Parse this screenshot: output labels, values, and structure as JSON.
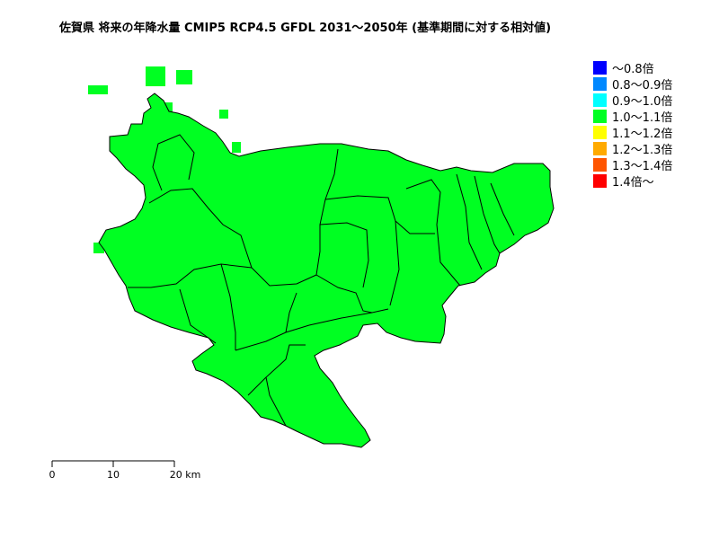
{
  "title": "佐賀県 将来の年降水量 CMIP5 RCP4.5 GFDL 2031～2050年 (基準期間に対する相対値)",
  "fill_color": "#00ff22",
  "legend": [
    {
      "label": "～0.8倍",
      "color": "#0000ff"
    },
    {
      "label": "0.8～0.9倍",
      "color": "#0088ff"
    },
    {
      "label": "0.9～1.0倍",
      "color": "#00ffff"
    },
    {
      "label": "1.0～1.1倍",
      "color": "#00ff22"
    },
    {
      "label": "1.1～1.2倍",
      "color": "#ffff00"
    },
    {
      "label": "1.2～1.3倍",
      "color": "#ffaa00"
    },
    {
      "label": "1.3～1.4倍",
      "color": "#ff5500"
    },
    {
      "label": "1.4倍～",
      "color": "#ff0000"
    }
  ],
  "scale": {
    "ticks": [
      "0",
      "10",
      "20 km"
    ]
  }
}
